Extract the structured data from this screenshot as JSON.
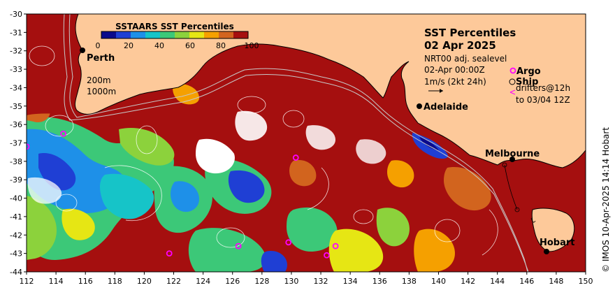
{
  "map": {
    "title_line1": "SST Percentiles",
    "title_line2": "02 Apr 2025",
    "subtitle": "NRT00 adj. sealevel",
    "time": "02-Apr 00:00Z",
    "vector_scale": "1m/s (2kt 24h)",
    "legend_argo": "Argo",
    "legend_ship": "Ship",
    "legend_drifters_line1": "drifters@12h",
    "legend_drifters_line2": "to 03/04 12Z",
    "depth_200": "200m",
    "depth_1000": "1000m",
    "credit": "© IMOS 10-Apr-2025 14:14 Hobart"
  },
  "colorbar": {
    "title": "SSTAARS SST Percentiles",
    "ticks": [
      "0",
      "20",
      "40",
      "60",
      "80",
      "100"
    ],
    "colors": [
      "#0a0a8c",
      "#1f3fd4",
      "#1e90e8",
      "#16c4c8",
      "#3cc878",
      "#8cd23c",
      "#e6e614",
      "#f5a000",
      "#d2641e",
      "#a50f0f"
    ]
  },
  "cities": [
    {
      "name": "Perth",
      "lon": 116.0,
      "lat": -31.95
    },
    {
      "name": "Adelaide",
      "lon": 138.6,
      "lat": -34.93
    },
    {
      "name": "Melbourne",
      "lon": 144.96,
      "lat": -37.81
    },
    {
      "name": "Hobart",
      "lon": 147.33,
      "lat": -42.88
    }
  ],
  "argo_floats": [
    {
      "lon": 114.5,
      "lat": -36.5
    },
    {
      "lon": 130.3,
      "lat": -37.8
    },
    {
      "lon": 121.7,
      "lat": -43.0
    },
    {
      "lon": 126.4,
      "lat": -42.6
    },
    {
      "lon": 129.8,
      "lat": -42.4
    },
    {
      "lon": 132.4,
      "lat": -43.1
    },
    {
      "lon": 133.0,
      "lat": -42.6
    },
    {
      "lon": 112.0,
      "lat": -37.2
    }
  ],
  "axes": {
    "x_ticks": [
      "112",
      "114",
      "116",
      "118",
      "120",
      "122",
      "124",
      "126",
      "128",
      "130",
      "132",
      "134",
      "136",
      "138",
      "140",
      "142",
      "144",
      "146",
      "148",
      "150"
    ],
    "y_ticks": [
      "-30",
      "-31",
      "-32",
      "-33",
      "-34",
      "-35",
      "-36",
      "-37",
      "-38",
      "-39",
      "-40",
      "-41",
      "-42",
      "-43",
      "-44"
    ],
    "lon_range": [
      112,
      150
    ],
    "lat_range": [
      -44,
      -30
    ]
  },
  "colors": {
    "land": "#fdc99a",
    "coast": "#000000",
    "high": "#a50f0f",
    "argo": "#ff00ff"
  }
}
